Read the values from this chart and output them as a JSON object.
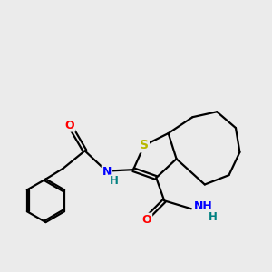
{
  "bg_color": "#ebebeb",
  "atom_colors": {
    "S": "#b8b800",
    "N": "#0000ff",
    "O": "#ff0000",
    "C": "#000000",
    "H": "#008080"
  },
  "bond_color": "#000000",
  "bond_width": 1.6,
  "figsize": [
    3.0,
    3.0
  ],
  "dpi": 100
}
